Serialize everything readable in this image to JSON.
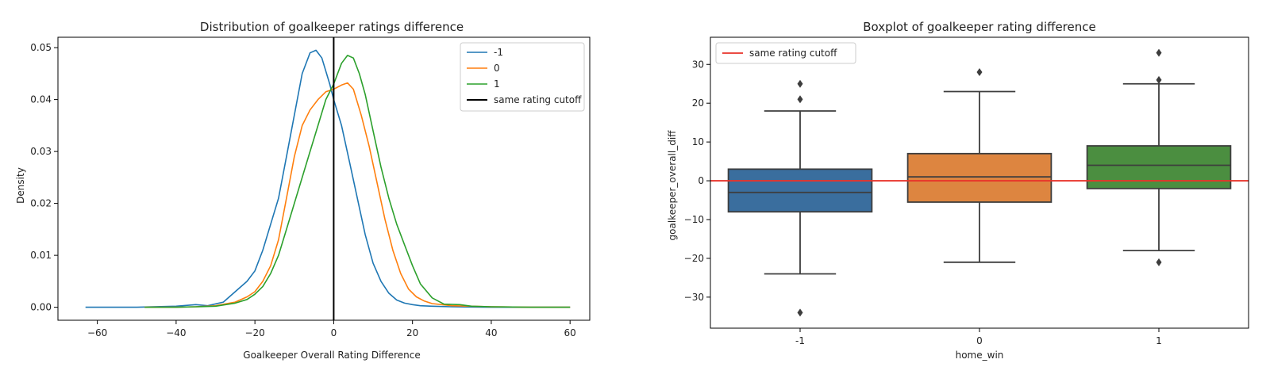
{
  "chart_data": [
    {
      "type": "line",
      "title": "Distribution of goalkeeper ratings difference",
      "xlabel": "Goalkeeper Overall Rating Difference",
      "ylabel": "Density",
      "xlim": [
        -70,
        65
      ],
      "ylim": [
        -0.0025,
        0.052
      ],
      "xticks": [
        -60,
        -40,
        -20,
        0,
        20,
        40,
        60
      ],
      "xtick_labels": [
        "−60",
        "−40",
        "−20",
        "0",
        "20",
        "40",
        "60"
      ],
      "yticks": [
        0.0,
        0.01,
        0.02,
        0.03,
        0.04,
        0.05
      ],
      "ytick_labels": [
        "0.00",
        "0.01",
        "0.02",
        "0.03",
        "0.04",
        "0.05"
      ],
      "legend_position": "top-right",
      "vline": {
        "x": 0,
        "name": "same rating cutoff",
        "color": "#000000"
      },
      "series": [
        {
          "name": "-1",
          "color": "#1f77b4",
          "x": [
            -63,
            -50,
            -40,
            -35,
            -32,
            -28,
            -25,
            -22,
            -20,
            -18,
            -16,
            -14,
            -12,
            -10,
            -8,
            -6,
            -4.5,
            -3,
            -1,
            0,
            2,
            4,
            6,
            8,
            10,
            12,
            14,
            16,
            18,
            20,
            22,
            25,
            30,
            35,
            40,
            50,
            60
          ],
          "y": [
            0.0,
            0.0,
            0.0002,
            0.0005,
            0.0003,
            0.001,
            0.003,
            0.005,
            0.007,
            0.011,
            0.016,
            0.021,
            0.029,
            0.037,
            0.045,
            0.049,
            0.0495,
            0.048,
            0.043,
            0.04,
            0.035,
            0.028,
            0.021,
            0.014,
            0.0085,
            0.005,
            0.0027,
            0.0014,
            0.0008,
            0.0005,
            0.0003,
            0.0002,
            0.0001,
            5e-05,
            0.0,
            0.0,
            0.0
          ]
        },
        {
          "name": "0",
          "color": "#ff7f0e",
          "x": [
            -48,
            -40,
            -35,
            -30,
            -25,
            -22,
            -20,
            -18,
            -16,
            -14,
            -12,
            -10,
            -8,
            -6,
            -4,
            -2,
            0,
            2,
            3.5,
            5,
            7,
            9,
            11,
            13,
            15,
            17,
            19,
            21,
            23,
            25,
            30,
            35,
            40,
            50,
            60
          ],
          "y": [
            0.0,
            0.0,
            0.0001,
            0.0003,
            0.001,
            0.002,
            0.003,
            0.005,
            0.008,
            0.013,
            0.021,
            0.029,
            0.035,
            0.038,
            0.04,
            0.0415,
            0.042,
            0.0428,
            0.0432,
            0.042,
            0.037,
            0.031,
            0.024,
            0.017,
            0.011,
            0.0065,
            0.0035,
            0.002,
            0.0012,
            0.0007,
            0.0003,
            0.0002,
            0.0001,
            0.0,
            0.0
          ]
        },
        {
          "name": "1",
          "color": "#2ca02c",
          "x": [
            -48,
            -40,
            -35,
            -30,
            -25,
            -22,
            -20,
            -18,
            -16,
            -14,
            -12,
            -10,
            -8,
            -6,
            -4,
            -2,
            0,
            2,
            3.5,
            5,
            6.5,
            8,
            10,
            12,
            14,
            16,
            18,
            20,
            22,
            25,
            28,
            32,
            35,
            40,
            50,
            60
          ],
          "y": [
            0.0,
            0.0,
            0.0001,
            0.0002,
            0.0008,
            0.0015,
            0.0025,
            0.004,
            0.0065,
            0.01,
            0.015,
            0.02,
            0.025,
            0.03,
            0.035,
            0.04,
            0.043,
            0.047,
            0.0485,
            0.048,
            0.045,
            0.041,
            0.034,
            0.027,
            0.021,
            0.016,
            0.012,
            0.008,
            0.0045,
            0.0018,
            0.0006,
            0.0005,
            0.0002,
            0.0001,
            0.0,
            0.0
          ]
        }
      ]
    },
    {
      "type": "box",
      "title": "Boxplot of goalkeeper rating difference",
      "xlabel": "home_win",
      "ylabel": "goalkeeper_overall_diff",
      "ylim": [
        -38,
        37
      ],
      "yticks": [
        -30,
        -20,
        -10,
        0,
        10,
        20,
        30
      ],
      "ytick_labels": [
        "−30",
        "−20",
        "−10",
        "0",
        "10",
        "20",
        "30"
      ],
      "categories": [
        "-1",
        "0",
        "1"
      ],
      "category_labels": [
        "-1",
        "0",
        "1"
      ],
      "legend_position": "top-left",
      "hline": {
        "y": 0,
        "name": "same rating cutoff",
        "color": "#e8332a"
      },
      "boxes": [
        {
          "category": "-1",
          "color": "#3a6e9e",
          "whisker_low": -24,
          "q1": -8,
          "median": -3,
          "q3": 3,
          "whisker_high": 18,
          "outliers": [
            21,
            25,
            -34
          ]
        },
        {
          "category": "0",
          "color": "#dd8540",
          "whisker_low": -21,
          "q1": -5.5,
          "median": 1,
          "q3": 7,
          "whisker_high": 23,
          "outliers": [
            28
          ]
        },
        {
          "category": "1",
          "color": "#4b8e40",
          "whisker_low": -18,
          "q1": -2,
          "median": 4,
          "q3": 9,
          "whisker_high": 25,
          "outliers": [
            26,
            33,
            -21
          ]
        }
      ]
    }
  ]
}
